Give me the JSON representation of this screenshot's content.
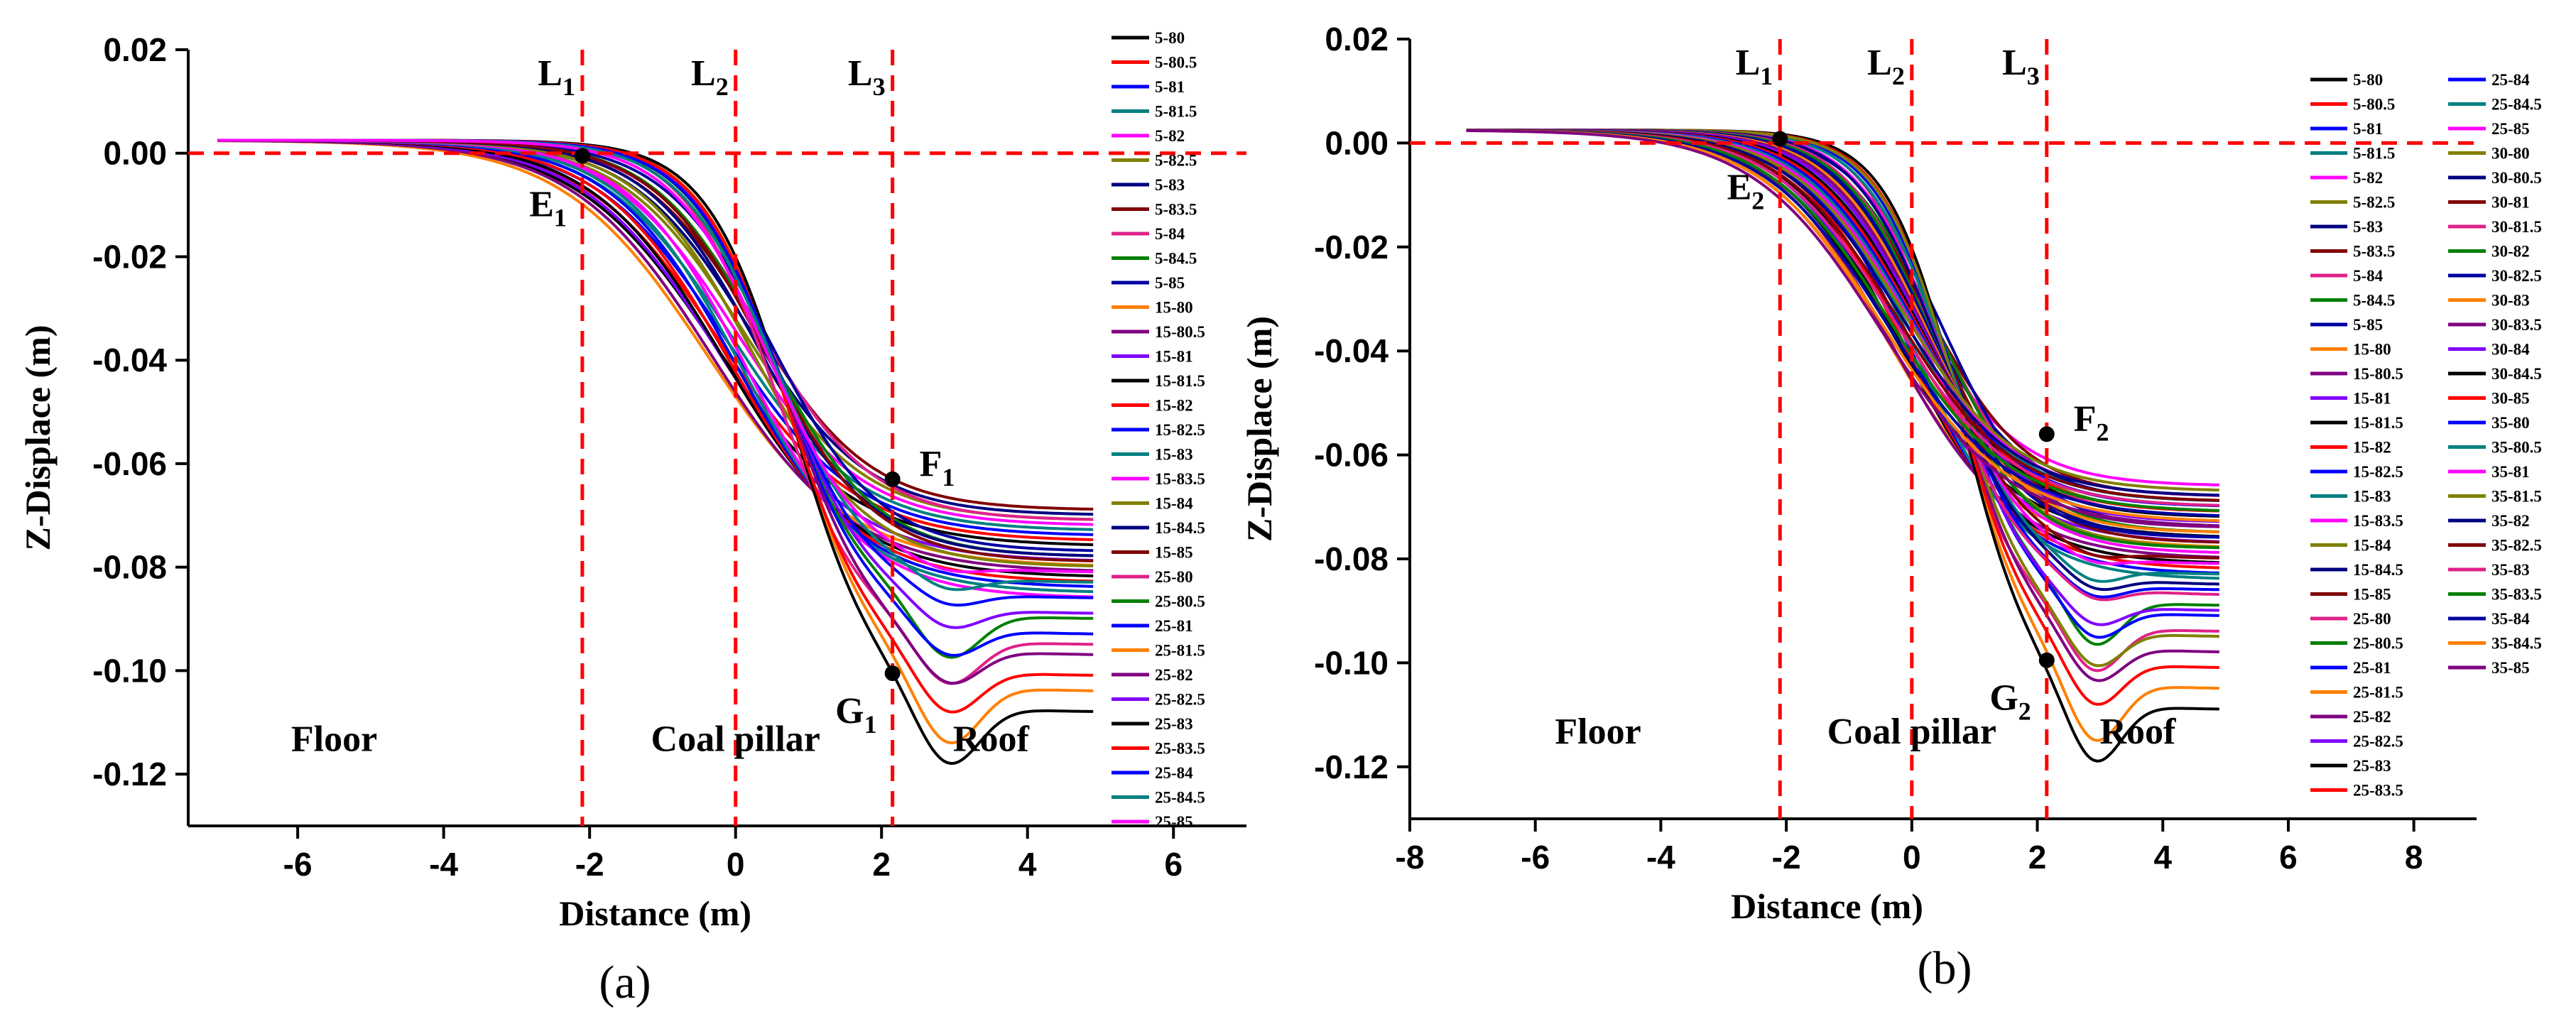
{
  "chart_data": [
    {
      "id": "a",
      "type": "line",
      "caption": "(a)",
      "xlabel": "Distance (m)",
      "ylabel": "Z-Displace (m)",
      "xlim": [
        -7.5,
        7
      ],
      "ylim": [
        -0.13,
        0.02
      ],
      "xticks": [
        -6,
        -4,
        -2,
        0,
        2,
        4,
        6
      ],
      "xtick_labels": [
        "-6",
        "-4",
        "-2",
        "0",
        "2",
        "4",
        "6"
      ],
      "yticks": [
        0.02,
        0.0,
        -0.02,
        -0.04,
        -0.06,
        -0.08,
        -0.1,
        -0.12
      ],
      "ytick_labels": [
        "0.02",
        "0.00",
        "-0.02",
        "-0.04",
        "-0.06",
        "-0.08",
        "-0.10",
        "-0.12"
      ],
      "vlines": [
        {
          "x": -2.1,
          "label": "L",
          "sub": "1"
        },
        {
          "x": 0,
          "label": "L",
          "sub": "2"
        },
        {
          "x": 2.15,
          "label": "L",
          "sub": "3"
        }
      ],
      "hline": 0,
      "regions": [
        {
          "text": "Floor",
          "x": -5.5
        },
        {
          "text": "Coal pillar",
          "x": 0.0
        },
        {
          "text": "Roof",
          "x": 3.5
        }
      ],
      "points": [
        {
          "label": "E",
          "sub": "1",
          "x": -2.1,
          "y": -0.0005
        },
        {
          "label": "F",
          "sub": "1",
          "x": 2.15,
          "y": -0.063
        },
        {
          "label": "G",
          "sub": "1",
          "x": 2.15,
          "y": -0.1005
        }
      ],
      "series": [
        {
          "name": "5-80",
          "color": "#000000",
          "mid": -0.3,
          "k": 1.05,
          "end": -0.076,
          "dip": 0.0
        },
        {
          "name": "5-80.5",
          "color": "#ff0000",
          "mid": -0.22,
          "k": 1.08,
          "end": -0.075,
          "dip": 0.0
        },
        {
          "name": "5-81",
          "color": "#0000ff",
          "mid": -0.14,
          "k": 1.11,
          "end": -0.074,
          "dip": 0.0
        },
        {
          "name": "5-81.5",
          "color": "#008080",
          "mid": -0.06,
          "k": 1.14,
          "end": -0.073,
          "dip": 0.0
        },
        {
          "name": "5-82",
          "color": "#ff00ff",
          "mid": 0.02,
          "k": 1.17,
          "end": -0.072,
          "dip": 0.0
        },
        {
          "name": "5-82.5",
          "color": "#808000",
          "mid": 0.1,
          "k": 1.2,
          "end": -0.071,
          "dip": 0.0
        },
        {
          "name": "5-83",
          "color": "#000080",
          "mid": 0.18,
          "k": 1.23,
          "end": -0.07,
          "dip": 0.0
        },
        {
          "name": "5-83.5",
          "color": "#800000",
          "mid": 0.26,
          "k": 1.26,
          "end": -0.069,
          "dip": 0.0
        },
        {
          "name": "5-84",
          "color": "#e0218a",
          "mid": 0.34,
          "k": 1.29,
          "end": -0.071,
          "dip": 0.0
        },
        {
          "name": "5-84.5",
          "color": "#008000",
          "mid": 0.42,
          "k": 1.32,
          "end": -0.078,
          "dip": 0.0
        },
        {
          "name": "5-85",
          "color": "#0000a0",
          "mid": 0.5,
          "k": 1.35,
          "end": -0.077,
          "dip": 0.0
        },
        {
          "name": "15-80",
          "color": "#ff8000",
          "mid": -0.4,
          "k": 1.02,
          "end": -0.08,
          "dip": 0.0
        },
        {
          "name": "15-80.5",
          "color": "#800080",
          "mid": -0.32,
          "k": 1.05,
          "end": -0.081,
          "dip": 0.0
        },
        {
          "name": "15-81",
          "color": "#8000ff",
          "mid": -0.24,
          "k": 1.08,
          "end": -0.079,
          "dip": 0.0
        },
        {
          "name": "15-81.5",
          "color": "#000000",
          "mid": -0.16,
          "k": 1.11,
          "end": -0.082,
          "dip": 0.0
        },
        {
          "name": "15-82",
          "color": "#ff0000",
          "mid": -0.08,
          "k": 1.14,
          "end": -0.083,
          "dip": 0.0
        },
        {
          "name": "15-82.5",
          "color": "#0000ff",
          "mid": 0.0,
          "k": 1.17,
          "end": -0.084,
          "dip": 0.0
        },
        {
          "name": "15-83",
          "color": "#008080",
          "mid": 0.08,
          "k": 1.2,
          "end": -0.085,
          "dip": 0.0
        },
        {
          "name": "15-83.5",
          "color": "#ff00ff",
          "mid": 0.16,
          "k": 1.23,
          "end": -0.086,
          "dip": 0.0
        },
        {
          "name": "15-84",
          "color": "#808000",
          "mid": 0.24,
          "k": 1.26,
          "end": -0.08,
          "dip": 0.0
        },
        {
          "name": "15-84.5",
          "color": "#000080",
          "mid": 0.32,
          "k": 1.29,
          "end": -0.078,
          "dip": 0.0
        },
        {
          "name": "15-85",
          "color": "#800000",
          "mid": 0.4,
          "k": 1.32,
          "end": -0.079,
          "dip": 0.0
        },
        {
          "name": "25-80",
          "color": "#e0218a",
          "mid": 0.55,
          "k": 1.6,
          "end": -0.095,
          "dip": 0.006
        },
        {
          "name": "25-80.5",
          "color": "#008000",
          "mid": 0.6,
          "k": 1.6,
          "end": -0.09,
          "dip": 0.006
        },
        {
          "name": "25-81",
          "color": "#0000ff",
          "mid": 0.65,
          "k": 1.6,
          "end": -0.093,
          "dip": 0.004
        },
        {
          "name": "25-81.5",
          "color": "#ff8000",
          "mid": 0.75,
          "k": 1.65,
          "end": -0.104,
          "dip": 0.008
        },
        {
          "name": "25-82",
          "color": "#800080",
          "mid": 0.7,
          "k": 1.62,
          "end": -0.097,
          "dip": 0.005
        },
        {
          "name": "25-82.5",
          "color": "#8000ff",
          "mid": 0.62,
          "k": 1.6,
          "end": -0.089,
          "dip": 0.003
        },
        {
          "name": "25-83",
          "color": "#000000",
          "mid": 0.8,
          "k": 1.7,
          "end": -0.108,
          "dip": 0.008
        },
        {
          "name": "25-83.5",
          "color": "#ff0000",
          "mid": 0.72,
          "k": 1.65,
          "end": -0.101,
          "dip": 0.006
        },
        {
          "name": "25-84",
          "color": "#0000ff",
          "mid": 0.58,
          "k": 1.6,
          "end": -0.086,
          "dip": 0.002
        },
        {
          "name": "25-84.5",
          "color": "#008080",
          "mid": 0.52,
          "k": 1.55,
          "end": -0.083,
          "dip": 0.002
        },
        {
          "name": "25-85",
          "color": "#ff00ff",
          "mid": 0.45,
          "k": 1.5,
          "end": -0.081,
          "dip": 0.001
        }
      ]
    },
    {
      "id": "b",
      "type": "line",
      "caption": "(b)",
      "xlabel": "Distance (m)",
      "ylabel": "Z-Displace (m)",
      "xlim": [
        -8,
        9
      ],
      "ylim": [
        -0.13,
        0.02
      ],
      "xticks": [
        -8,
        -6,
        -4,
        -2,
        0,
        2,
        4,
        6,
        8
      ],
      "xtick_labels": [
        "-8",
        "-6",
        "-4",
        "-2",
        "0",
        "2",
        "4",
        "6",
        "8"
      ],
      "yticks": [
        0.02,
        0.0,
        -0.02,
        -0.04,
        -0.06,
        -0.08,
        -0.1,
        -0.12
      ],
      "ytick_labels": [
        "0.02",
        "0.00",
        "-0.02",
        "-0.04",
        "-0.06",
        "-0.08",
        "-0.10",
        "-0.12"
      ],
      "vlines": [
        {
          "x": -2.1,
          "label": "L",
          "sub": "1"
        },
        {
          "x": 0,
          "label": "L",
          "sub": "2"
        },
        {
          "x": 2.15,
          "label": "L",
          "sub": "3"
        }
      ],
      "hline": 0,
      "regions": [
        {
          "text": "Floor",
          "x": -5.0
        },
        {
          "text": "Coal pillar",
          "x": 0.0
        },
        {
          "text": "Roof",
          "x": 3.6
        }
      ],
      "points": [
        {
          "label": "E",
          "sub": "2",
          "x": -2.1,
          "y": 0.0008
        },
        {
          "label": "F",
          "sub": "2",
          "x": 2.15,
          "y": -0.056
        },
        {
          "label": "G",
          "sub": "2",
          "x": 2.15,
          "y": -0.0995
        }
      ],
      "series": [
        {
          "name": "5-80",
          "color": "#000000",
          "mid": -0.3,
          "k": 1.05,
          "end": -0.076,
          "dip": 0.0
        },
        {
          "name": "5-80.5",
          "color": "#ff0000",
          "mid": -0.22,
          "k": 1.08,
          "end": -0.072,
          "dip": 0.0
        },
        {
          "name": "5-81",
          "color": "#0000ff",
          "mid": -0.14,
          "k": 1.11,
          "end": -0.07,
          "dip": 0.0
        },
        {
          "name": "5-81.5",
          "color": "#008080",
          "mid": -0.06,
          "k": 1.14,
          "end": -0.073,
          "dip": 0.0
        },
        {
          "name": "5-82",
          "color": "#ff00ff",
          "mid": 0.02,
          "k": 1.17,
          "end": -0.066,
          "dip": 0.0
        },
        {
          "name": "5-82.5",
          "color": "#808000",
          "mid": 0.1,
          "k": 1.2,
          "end": -0.071,
          "dip": 0.0
        },
        {
          "name": "5-83",
          "color": "#000080",
          "mid": 0.18,
          "k": 1.23,
          "end": -0.069,
          "dip": 0.0
        },
        {
          "name": "5-83.5",
          "color": "#800000",
          "mid": 0.26,
          "k": 1.26,
          "end": -0.068,
          "dip": 0.0
        },
        {
          "name": "5-84",
          "color": "#e0218a",
          "mid": 0.34,
          "k": 1.29,
          "end": -0.072,
          "dip": 0.0
        },
        {
          "name": "5-84.5",
          "color": "#008000",
          "mid": 0.42,
          "k": 1.32,
          "end": -0.075,
          "dip": 0.0
        },
        {
          "name": "5-85",
          "color": "#0000a0",
          "mid": 0.5,
          "k": 1.35,
          "end": -0.074,
          "dip": 0.0
        },
        {
          "name": "15-80",
          "color": "#ff8000",
          "mid": -0.4,
          "k": 1.02,
          "end": -0.078,
          "dip": 0.0
        },
        {
          "name": "15-80.5",
          "color": "#800080",
          "mid": -0.32,
          "k": 1.05,
          "end": -0.08,
          "dip": 0.0
        },
        {
          "name": "15-81",
          "color": "#8000ff",
          "mid": -0.24,
          "k": 1.08,
          "end": -0.077,
          "dip": 0.0
        },
        {
          "name": "15-81.5",
          "color": "#000000",
          "mid": -0.16,
          "k": 1.11,
          "end": -0.081,
          "dip": 0.0
        },
        {
          "name": "15-82",
          "color": "#ff0000",
          "mid": -0.08,
          "k": 1.14,
          "end": -0.082,
          "dip": 0.0
        },
        {
          "name": "15-82.5",
          "color": "#0000ff",
          "mid": 0.0,
          "k": 1.17,
          "end": -0.083,
          "dip": 0.0
        },
        {
          "name": "15-83",
          "color": "#008080",
          "mid": 0.08,
          "k": 1.2,
          "end": -0.084,
          "dip": 0.0
        },
        {
          "name": "15-83.5",
          "color": "#ff00ff",
          "mid": 0.16,
          "k": 1.23,
          "end": -0.079,
          "dip": 0.0
        },
        {
          "name": "15-84",
          "color": "#808000",
          "mid": 0.24,
          "k": 1.26,
          "end": -0.078,
          "dip": 0.0
        },
        {
          "name": "15-84.5",
          "color": "#000080",
          "mid": 0.32,
          "k": 1.29,
          "end": -0.076,
          "dip": 0.0
        },
        {
          "name": "15-85",
          "color": "#800000",
          "mid": 0.4,
          "k": 1.32,
          "end": -0.077,
          "dip": 0.0
        },
        {
          "name": "25-80",
          "color": "#e0218a",
          "mid": 0.55,
          "k": 1.6,
          "end": -0.094,
          "dip": 0.006
        },
        {
          "name": "25-80.5",
          "color": "#008000",
          "mid": 0.6,
          "k": 1.6,
          "end": -0.089,
          "dip": 0.006
        },
        {
          "name": "25-81",
          "color": "#0000ff",
          "mid": 0.65,
          "k": 1.6,
          "end": -0.091,
          "dip": 0.004
        },
        {
          "name": "25-81.5",
          "color": "#ff8000",
          "mid": 0.75,
          "k": 1.65,
          "end": -0.105,
          "dip": 0.008
        },
        {
          "name": "25-82",
          "color": "#800080",
          "mid": 0.7,
          "k": 1.62,
          "end": -0.098,
          "dip": 0.005
        },
        {
          "name": "25-82.5",
          "color": "#8000ff",
          "mid": 0.62,
          "k": 1.6,
          "end": -0.09,
          "dip": 0.003
        },
        {
          "name": "25-83",
          "color": "#000000",
          "mid": 0.8,
          "k": 1.7,
          "end": -0.109,
          "dip": 0.008
        },
        {
          "name": "25-83.5",
          "color": "#ff0000",
          "mid": 0.72,
          "k": 1.65,
          "end": -0.101,
          "dip": 0.006
        },
        {
          "name": "25-84",
          "color": "#0000ff",
          "mid": 0.58,
          "k": 1.6,
          "end": -0.086,
          "dip": 0.002
        },
        {
          "name": "25-84.5",
          "color": "#008080",
          "mid": 0.52,
          "k": 1.55,
          "end": -0.083,
          "dip": 0.002
        },
        {
          "name": "25-85",
          "color": "#ff00ff",
          "mid": 0.45,
          "k": 1.5,
          "end": -0.081,
          "dip": 0.001
        },
        {
          "name": "30-80",
          "color": "#808000",
          "mid": 0.68,
          "k": 1.62,
          "end": -0.095,
          "dip": 0.005
        },
        {
          "name": "30-80.5",
          "color": "#000080",
          "mid": 0.5,
          "k": 1.45,
          "end": -0.085,
          "dip": 0.002
        },
        {
          "name": "30-81",
          "color": "#800000",
          "mid": 0.38,
          "k": 1.4,
          "end": -0.08,
          "dip": 0.001
        },
        {
          "name": "30-81.5",
          "color": "#e0218a",
          "mid": 0.44,
          "k": 1.42,
          "end": -0.087,
          "dip": 0.002
        },
        {
          "name": "30-82",
          "color": "#008000",
          "mid": 0.35,
          "k": 1.38,
          "end": -0.078,
          "dip": 0.0
        },
        {
          "name": "30-82.5",
          "color": "#0000a0",
          "mid": 0.3,
          "k": 1.35,
          "end": -0.076,
          "dip": 0.0
        },
        {
          "name": "30-83",
          "color": "#ff8000",
          "mid": 0.25,
          "k": 1.3,
          "end": -0.075,
          "dip": 0.0
        },
        {
          "name": "30-83.5",
          "color": "#800080",
          "mid": 0.2,
          "k": 1.28,
          "end": -0.074,
          "dip": 0.0
        },
        {
          "name": "30-84",
          "color": "#8000ff",
          "mid": 0.15,
          "k": 1.25,
          "end": -0.073,
          "dip": 0.0
        },
        {
          "name": "30-84.5",
          "color": "#000000",
          "mid": 0.1,
          "k": 1.22,
          "end": -0.072,
          "dip": 0.0
        },
        {
          "name": "30-85",
          "color": "#ff0000",
          "mid": 0.05,
          "k": 1.2,
          "end": -0.071,
          "dip": 0.0
        },
        {
          "name": "35-80",
          "color": "#0000ff",
          "mid": 0.0,
          "k": 1.18,
          "end": -0.07,
          "dip": 0.0
        },
        {
          "name": "35-80.5",
          "color": "#008080",
          "mid": -0.05,
          "k": 1.16,
          "end": -0.069,
          "dip": 0.0
        },
        {
          "name": "35-81",
          "color": "#ff00ff",
          "mid": -0.1,
          "k": 1.14,
          "end": -0.068,
          "dip": 0.0
        },
        {
          "name": "35-81.5",
          "color": "#808000",
          "mid": -0.15,
          "k": 1.12,
          "end": -0.067,
          "dip": 0.0
        },
        {
          "name": "35-82",
          "color": "#000080",
          "mid": -0.2,
          "k": 1.1,
          "end": -0.068,
          "dip": 0.0
        },
        {
          "name": "35-82.5",
          "color": "#800000",
          "mid": -0.25,
          "k": 1.08,
          "end": -0.069,
          "dip": 0.0
        },
        {
          "name": "35-83",
          "color": "#e0218a",
          "mid": -0.3,
          "k": 1.06,
          "end": -0.07,
          "dip": 0.0
        },
        {
          "name": "35-83.5",
          "color": "#008000",
          "mid": -0.35,
          "k": 1.04,
          "end": -0.071,
          "dip": 0.0
        },
        {
          "name": "35-84",
          "color": "#0000a0",
          "mid": -0.4,
          "k": 1.02,
          "end": -0.072,
          "dip": 0.0
        },
        {
          "name": "35-84.5",
          "color": "#ff8000",
          "mid": -0.45,
          "k": 1.0,
          "end": -0.073,
          "dip": 0.0
        },
        {
          "name": "35-85",
          "color": "#800080",
          "mid": -0.5,
          "k": 0.98,
          "end": -0.074,
          "dip": 0.0
        }
      ]
    }
  ]
}
